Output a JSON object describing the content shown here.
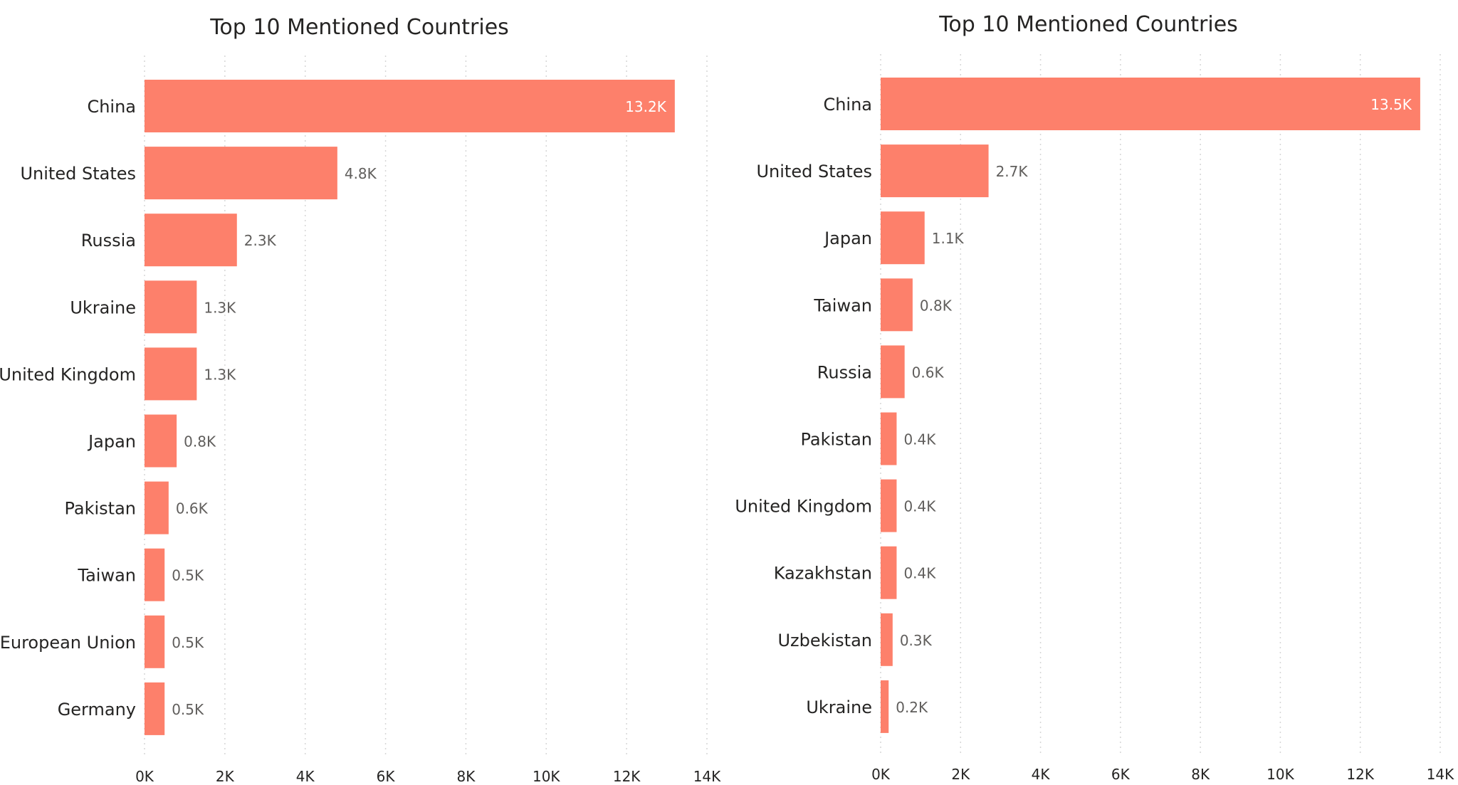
{
  "colors": {
    "bar": "#fd806b",
    "background": "#ffffff",
    "gridline": "#d6d6d6",
    "data_label": "#605e5c",
    "data_label_inside": "#ffffff",
    "text": "#252423"
  },
  "chart_data": [
    {
      "type": "bar",
      "orientation": "horizontal",
      "title": "Top 10 Mentioned Countries",
      "categories": [
        "China",
        "United States",
        "Russia",
        "Ukraine",
        "United Kingdom",
        "Japan",
        "Pakistan",
        "Taiwan",
        "European Union",
        "Germany"
      ],
      "values": [
        13200,
        4800,
        2300,
        1300,
        1300,
        800,
        600,
        500,
        500,
        500
      ],
      "data_labels": [
        "13.2K",
        "4.8K",
        "2.3K",
        "1.3K",
        "1.3K",
        "0.8K",
        "0.6K",
        "0.5K",
        "0.5K",
        "0.5K"
      ],
      "xlim": [
        0,
        14000
      ],
      "x_ticks": [
        0,
        2000,
        4000,
        6000,
        8000,
        10000,
        12000,
        14000
      ],
      "x_tick_labels": [
        "0K",
        "2K",
        "4K",
        "6K",
        "8K",
        "10K",
        "12K",
        "14K"
      ],
      "xlabel": "",
      "ylabel": "",
      "grid": "vertical dotted",
      "legend": "none"
    },
    {
      "type": "bar",
      "orientation": "horizontal",
      "title": "Top 10 Mentioned Countries",
      "categories": [
        "China",
        "United States",
        "Japan",
        "Taiwan",
        "Russia",
        "Pakistan",
        "United Kingdom",
        "Kazakhstan",
        "Uzbekistan",
        "Ukraine"
      ],
      "values": [
        13500,
        2700,
        1100,
        800,
        600,
        400,
        400,
        400,
        300,
        200
      ],
      "data_labels": [
        "13.5K",
        "2.7K",
        "1.1K",
        "0.8K",
        "0.6K",
        "0.4K",
        "0.4K",
        "0.4K",
        "0.3K",
        "0.2K"
      ],
      "xlim": [
        0,
        14000
      ],
      "x_ticks": [
        0,
        2000,
        4000,
        6000,
        8000,
        10000,
        12000,
        14000
      ],
      "x_tick_labels": [
        "0K",
        "2K",
        "4K",
        "6K",
        "8K",
        "10K",
        "12K",
        "14K"
      ],
      "xlabel": "",
      "ylabel": "",
      "grid": "vertical dotted",
      "legend": "none"
    }
  ]
}
